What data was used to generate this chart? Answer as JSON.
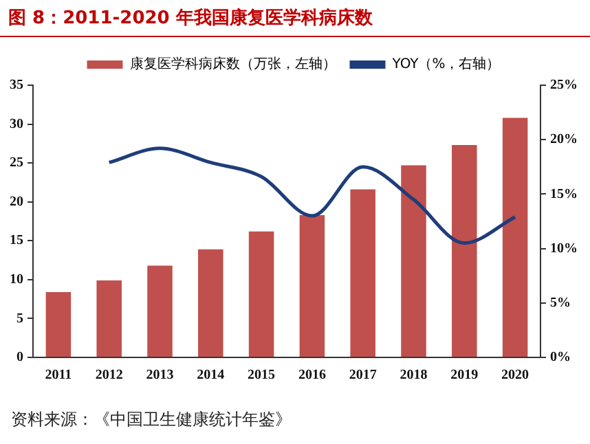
{
  "chart_data": {
    "type": "bar",
    "title": "图 8：2011-2020 年我国康复医学科病床数",
    "annotations": [
      "资料来源：《中国卫生健康统计年鉴》"
    ],
    "categories": [
      "2011",
      "2012",
      "2013",
      "2014",
      "2015",
      "2016",
      "2017",
      "2018",
      "2019",
      "2020"
    ],
    "series": [
      {
        "name": "康复医学科病床数（万张，左轴）",
        "color": "#c0504d",
        "values": [
          8.4,
          9.9,
          11.8,
          13.9,
          16.2,
          18.3,
          21.6,
          24.7,
          27.3,
          30.8
        ]
      },
      {
        "name": "YOY（%，右轴）",
        "type": "line",
        "axis": "y2",
        "color": "#1f3d7a",
        "values": [
          null,
          17.9,
          19.2,
          17.9,
          16.6,
          13.0,
          17.5,
          14.5,
          10.5,
          12.9
        ]
      }
    ],
    "ylim": [
      0,
      35
    ],
    "yticks": [
      0,
      5,
      10,
      15,
      20,
      25,
      30,
      35
    ],
    "y2lim": [
      0,
      25
    ],
    "y2ticks": [
      {
        "value": 0,
        "label": "0%"
      },
      {
        "value": 5,
        "label": "5%"
      },
      {
        "value": 10,
        "label": "10%"
      },
      {
        "value": 15,
        "label": "15%"
      },
      {
        "value": 20,
        "label": "20%"
      },
      {
        "value": 25,
        "label": "25%"
      }
    ],
    "grid": false,
    "legend": "top",
    "marker": "none"
  }
}
